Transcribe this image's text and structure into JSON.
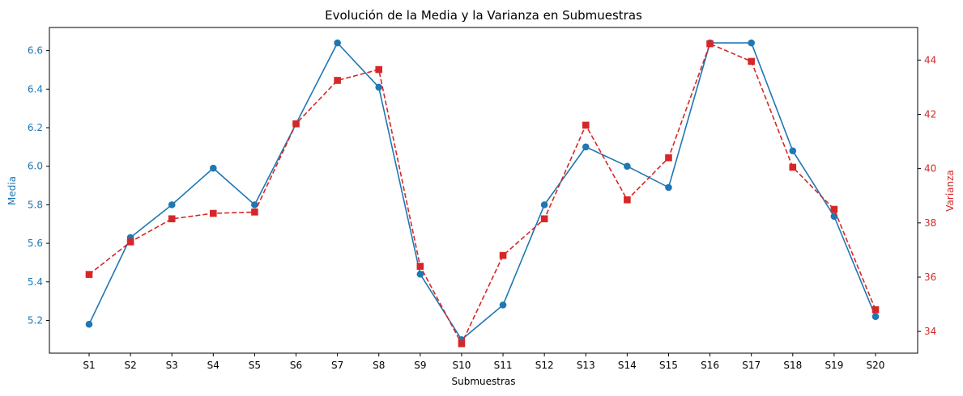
{
  "chart_data": {
    "type": "line",
    "title": "Evolución de la Media y la Varianza en Submuestras",
    "xlabel": "Submuestras",
    "ylabel_left": "Media",
    "ylabel_right": "Varianza",
    "categories": [
      "S1",
      "S2",
      "S3",
      "S4",
      "S5",
      "S6",
      "S7",
      "S8",
      "S9",
      "S10",
      "S11",
      "S12",
      "S13",
      "S14",
      "S15",
      "S16",
      "S17",
      "S18",
      "S19",
      "S20"
    ],
    "left_axis": {
      "ylim": [
        5.03,
        6.72
      ],
      "ticks": [
        5.2,
        5.4,
        5.6,
        5.8,
        6.0,
        6.2,
        6.4,
        6.6
      ],
      "tick_labels": [
        "5.2",
        "5.4",
        "5.6",
        "5.8",
        "6.0",
        "6.2",
        "6.4",
        "6.6"
      ],
      "color": "#1f77b4"
    },
    "right_axis": {
      "ylim": [
        33.2,
        45.2
      ],
      "ticks": [
        34,
        36,
        38,
        40,
        42,
        44
      ],
      "tick_labels": [
        "34",
        "36",
        "38",
        "40",
        "42",
        "44"
      ],
      "color": "#d62728"
    },
    "series": [
      {
        "name": "Media",
        "axis": "left",
        "color": "#1f77b4",
        "line_style": "solid",
        "marker": "circle",
        "values": [
          5.18,
          5.63,
          5.8,
          5.99,
          5.8,
          6.22,
          6.64,
          6.41,
          5.44,
          5.1,
          5.28,
          5.8,
          6.1,
          6.0,
          5.89,
          6.64,
          6.64,
          6.08,
          5.74,
          5.22
        ]
      },
      {
        "name": "Varianza",
        "axis": "right",
        "color": "#d62728",
        "line_style": "dashed",
        "marker": "square",
        "values": [
          36.1,
          37.3,
          38.15,
          38.35,
          38.4,
          41.65,
          43.25,
          43.65,
          36.4,
          33.55,
          36.8,
          38.15,
          41.6,
          38.85,
          40.4,
          44.6,
          43.95,
          40.05,
          38.5,
          34.8
        ]
      }
    ],
    "grid": false,
    "legend": "none"
  }
}
